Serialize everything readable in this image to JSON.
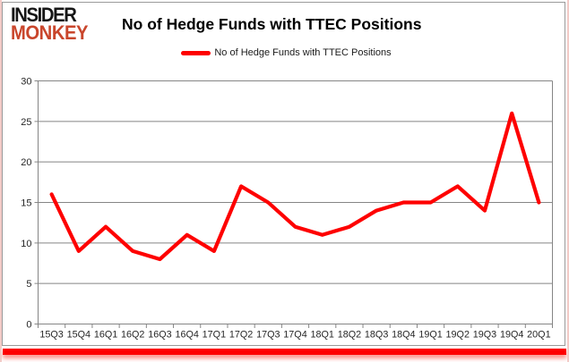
{
  "header": {
    "logo_line1": "INSIDER",
    "logo_line2": "MONKEY",
    "title": "No of Hedge Funds with TTEC Positions"
  },
  "legend": {
    "label": "No of Hedge Funds with TTEC Positions"
  },
  "colors": {
    "line": "#fe0000",
    "grid": "#858585",
    "axis_text": "#262626",
    "logo_black": "#161616",
    "logo_red": "#c9462c",
    "frame_border": "#9a9a9a",
    "outer_border": "#f3cbc7",
    "bottom_bar": "#fe0000"
  },
  "chart_data": {
    "type": "line",
    "title": "No of Hedge Funds with TTEC Positions",
    "series": [
      {
        "name": "No of Hedge Funds with TTEC Positions",
        "values": [
          16,
          9,
          12,
          9,
          8,
          11,
          9,
          17,
          15,
          12,
          11,
          12,
          14,
          15,
          15,
          17,
          14,
          26,
          15
        ]
      }
    ],
    "categories": [
      "15Q3",
      "15Q4",
      "16Q1",
      "16Q2",
      "16Q3",
      "16Q4",
      "17Q1",
      "17Q2",
      "17Q3",
      "17Q4",
      "18Q1",
      "18Q2",
      "18Q3",
      "18Q4",
      "19Q1",
      "19Q2",
      "19Q3",
      "19Q4",
      "20Q1"
    ],
    "xlabel": "",
    "ylabel": "",
    "ylim": [
      0,
      30
    ],
    "yticks": [
      0,
      5,
      10,
      15,
      20,
      25,
      30
    ],
    "grid": true,
    "legend_position": "top"
  }
}
